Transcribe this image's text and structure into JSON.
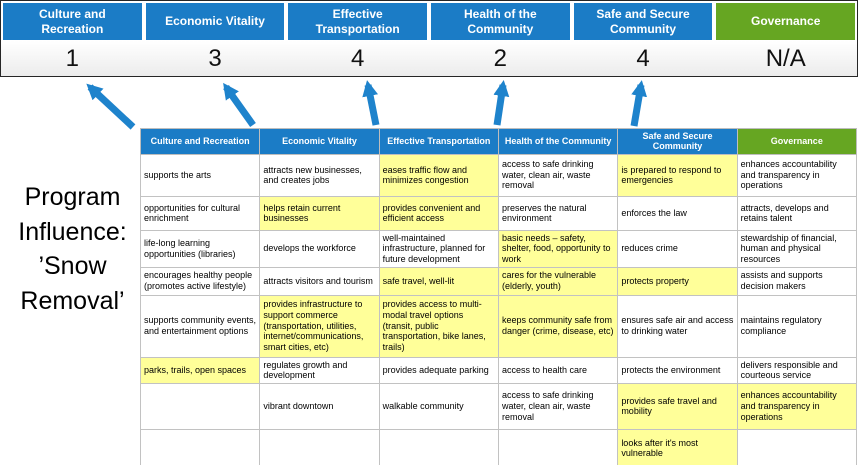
{
  "colors": {
    "header_blue": "#1B7CC6",
    "header_green": "#66A622",
    "highlight_yellow": "#FFFF99",
    "arrow_blue": "#1E83CC"
  },
  "banner": {
    "columns": [
      {
        "label": "Culture and Recreation",
        "score": "1",
        "color": "#1B7CC6"
      },
      {
        "label": "Economic Vitality",
        "score": "3",
        "color": "#1B7CC6"
      },
      {
        "label": "Effective Transportation",
        "score": "4",
        "color": "#1B7CC6"
      },
      {
        "label": "Health of the Community",
        "score": "2",
        "color": "#1B7CC6"
      },
      {
        "label": "Safe and Secure Community",
        "score": "4",
        "color": "#1B7CC6"
      },
      {
        "label": "Governance",
        "score": "N/A",
        "color": "#66A622"
      }
    ]
  },
  "title": {
    "lines": [
      "Program",
      "Influence:",
      "’Snow",
      "Removal’"
    ]
  },
  "table": {
    "headers": [
      {
        "label": "Culture and Recreation",
        "color": "#1B7CC6"
      },
      {
        "label": "Economic Vitality",
        "color": "#1B7CC6"
      },
      {
        "label": "Effective Transportation",
        "color": "#1B7CC6"
      },
      {
        "label": "Health of the Community",
        "color": "#1B7CC6"
      },
      {
        "label": "Safe and Secure Community",
        "color": "#1B7CC6"
      },
      {
        "label": "Governance",
        "color": "#66A622"
      }
    ],
    "rows": [
      {
        "cells": [
          {
            "t": "supports the arts",
            "h": false
          },
          {
            "t": "attracts new businesses, and creates jobs",
            "h": false
          },
          {
            "t": "eases traffic flow and minimizes congestion",
            "h": true
          },
          {
            "t": "access to safe drinking water, clean air, waste removal",
            "h": false
          },
          {
            "t": "is prepared to respond to emergencies",
            "h": true
          },
          {
            "t": "enhances accountability and transparency in operations",
            "h": false
          }
        ]
      },
      {
        "cells": [
          {
            "t": "opportunities for cultural enrichment",
            "h": false
          },
          {
            "t": "helps retain current businesses",
            "h": true
          },
          {
            "t": "provides convenient and efficient access",
            "h": true
          },
          {
            "t": "preserves the natural environment",
            "h": false
          },
          {
            "t": "enforces the law",
            "h": false
          },
          {
            "t": "attracts, develops and retains talent",
            "h": false
          }
        ]
      },
      {
        "cells": [
          {
            "t": "life-long learning opportunities (libraries)",
            "h": false
          },
          {
            "t": "develops the workforce",
            "h": false
          },
          {
            "t": "well-maintained infrastructure, planned for future development",
            "h": false
          },
          {
            "t": "basic needs – safety, shelter, food, opportunity to work",
            "h": true
          },
          {
            "t": "reduces crime",
            "h": false
          },
          {
            "t": "stewardship of financial, human and physical resources",
            "h": false
          }
        ]
      },
      {
        "cells": [
          {
            "t": "encourages healthy people (promotes active lifestyle)",
            "h": false
          },
          {
            "t": "attracts visitors and tourism",
            "h": false
          },
          {
            "t": "safe travel, well-lit",
            "h": true
          },
          {
            "t": "cares for the vulnerable (elderly, youth)",
            "h": true
          },
          {
            "t": "protects property",
            "h": true
          },
          {
            "t": "assists and supports decision makers",
            "h": false
          }
        ]
      },
      {
        "cells": [
          {
            "t": "supports community events, and entertainment options",
            "h": false
          },
          {
            "t": "provides infrastructure to support commerce (transportation, utilities, internet/communications, smart cities, etc)",
            "h": true
          },
          {
            "t": "provides access to multi-modal travel options (transit, public transportation, bike lanes, trails)",
            "h": true
          },
          {
            "t": "keeps community safe from danger (crime, disease, etc)",
            "h": true
          },
          {
            "t": "ensures safe air and access to drinking water",
            "h": false
          },
          {
            "t": "maintains regulatory compliance",
            "h": false
          }
        ]
      },
      {
        "cells": [
          {
            "t": "parks, trails, open spaces",
            "h": true
          },
          {
            "t": "regulates growth and development",
            "h": false
          },
          {
            "t": "provides adequate parking",
            "h": false
          },
          {
            "t": "access to health care",
            "h": false
          },
          {
            "t": "protects the environment",
            "h": false
          },
          {
            "t": "delivers responsible and courteous service",
            "h": false
          }
        ]
      },
      {
        "cells": [
          {
            "t": "",
            "h": false
          },
          {
            "t": "vibrant downtown",
            "h": false
          },
          {
            "t": "walkable community",
            "h": false
          },
          {
            "t": "access to safe drinking water, clean air, waste removal",
            "h": false
          },
          {
            "t": "provides safe travel and mobility",
            "h": true
          },
          {
            "t": "enhances accountability and transparency in operations",
            "h": true
          }
        ]
      },
      {
        "cells": [
          {
            "t": "",
            "h": false
          },
          {
            "t": "",
            "h": false
          },
          {
            "t": "",
            "h": false
          },
          {
            "t": "",
            "h": false
          },
          {
            "t": "looks after it's most vulnerable",
            "h": true
          },
          {
            "t": "",
            "h": false
          }
        ]
      }
    ]
  }
}
